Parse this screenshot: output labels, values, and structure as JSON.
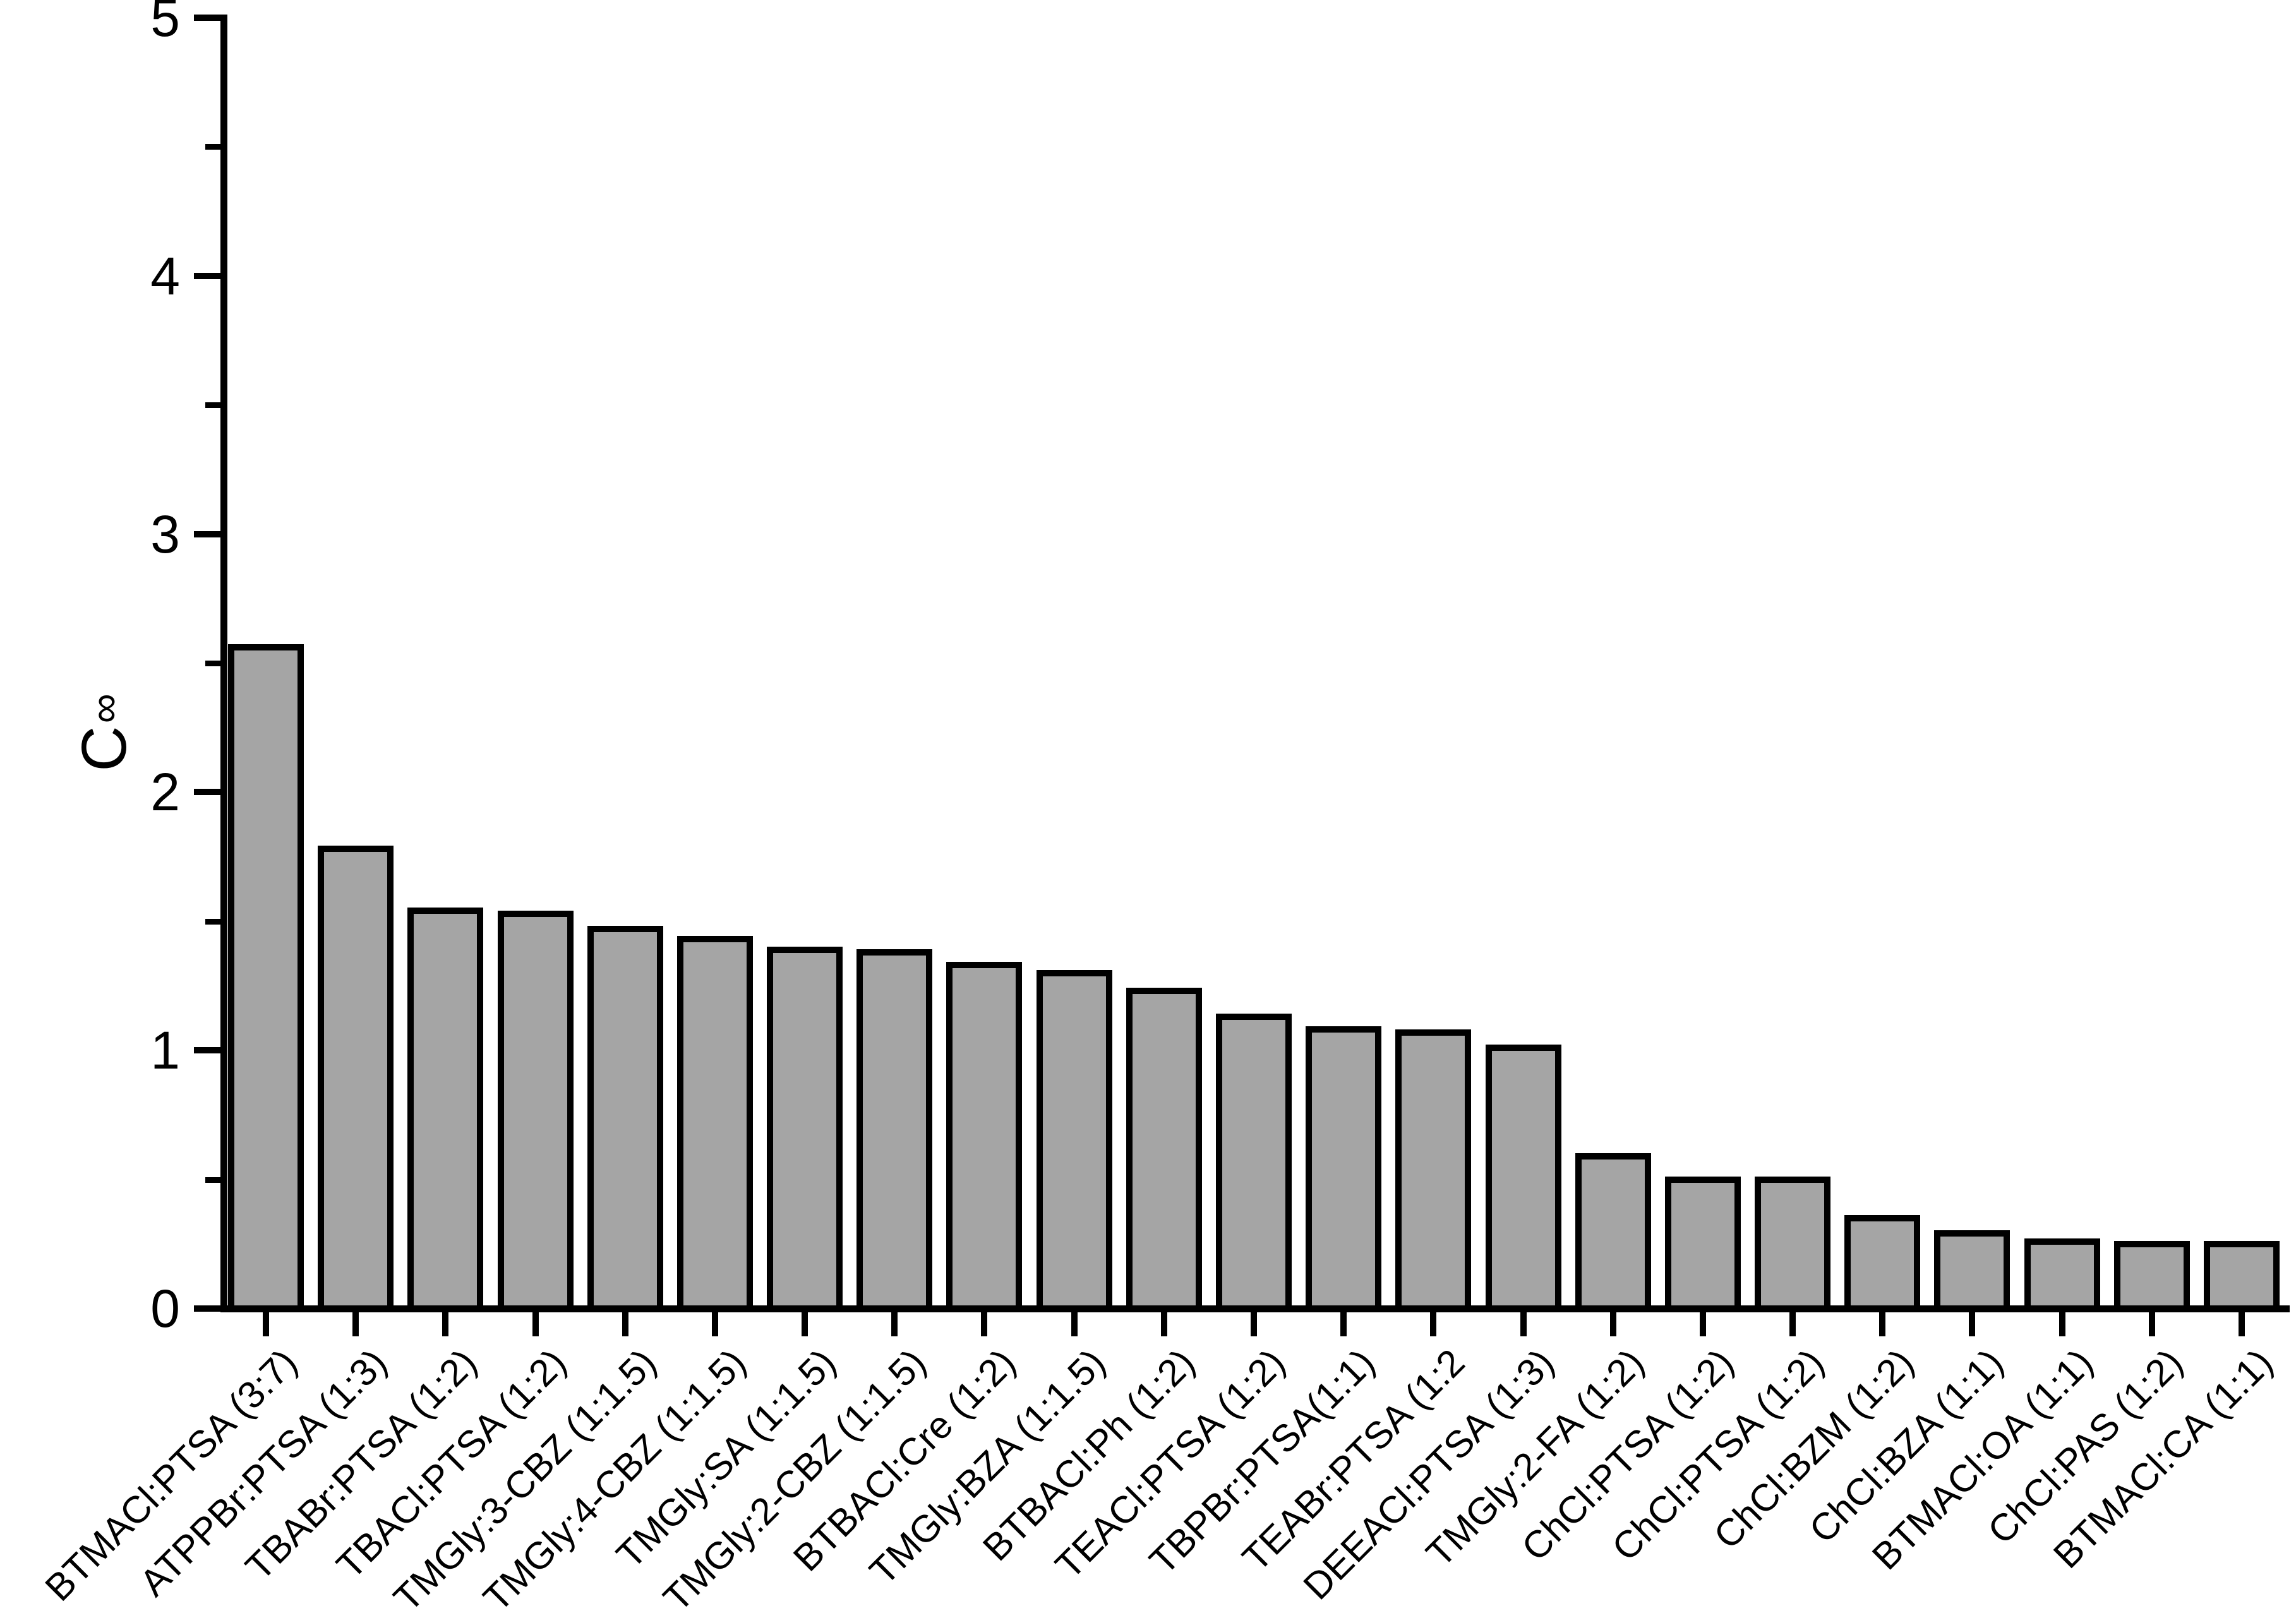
{
  "chart_data": {
    "type": "bar",
    "title": "",
    "xlabel": "",
    "ylabel": "C∞",
    "ylabel_base": "C",
    "ylabel_sup": "∞",
    "ylim": [
      0,
      5
    ],
    "yticks": [
      "0",
      "1",
      "2",
      "3",
      "4",
      "5"
    ],
    "minor_yticks": [
      0.5,
      1.5,
      2.5,
      3.5,
      4.5
    ],
    "grid": false,
    "legend_position": "none",
    "bar_fill_color": "#a5a5a5",
    "bar_stroke_color": "#000000",
    "axis_color": "#000000",
    "categories": [
      "BTMACl:PTSA (3:7)",
      "ATPPBr:PTSA (1:3)",
      "TBABr:PTSA (1:2)",
      "TBACl:PTSA (1:2)",
      "TMGly:3-CBZ (1:1.5)",
      "TMGly:4-CBZ (1:1.5)",
      "TMGly:SA (1:1.5)",
      "TMGly:2-CBZ (1:1.5)",
      "BTBACl:Cre (1:2)",
      "TMGly:BZA (1:1.5)",
      "BTBACl:Ph (1:2)",
      "TEACl:PTSA (1:2)",
      "TBPBr:PTSA(1:1)",
      "TEABr:PTSA (1:2",
      "DEEACl:PTSA (1:3)",
      "TMGly:2-FA (1:2)",
      "ChCl:PTSA (1:2)",
      "ChCl:PTSA (1:2)",
      "ChCl:BZM (1:2)",
      "ChCl:BZA (1:1)",
      "BTMACl:OA (1:1)",
      "ChCl:PAS (1:2)",
      "BTMACl:CA (1:1)"
    ],
    "values": [
      2.56,
      1.78,
      1.54,
      1.53,
      1.47,
      1.43,
      1.39,
      1.38,
      1.33,
      1.3,
      1.23,
      1.13,
      1.08,
      1.07,
      1.01,
      0.59,
      0.5,
      0.5,
      0.35,
      0.29,
      0.26,
      0.25,
      0.25
    ]
  }
}
